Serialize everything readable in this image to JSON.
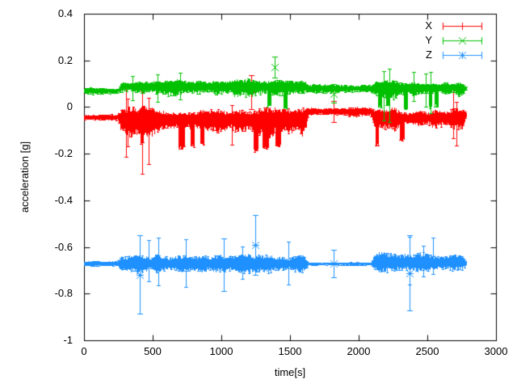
{
  "chart_data": {
    "type": "scatter",
    "style": "errorbars",
    "title": "",
    "xlabel": "time[s]",
    "ylabel": "acceleration [g]",
    "xlim": [
      0,
      3000
    ],
    "ylim": [
      -1,
      0.4
    ],
    "xticks": [
      "0",
      "500",
      "1000",
      "1500",
      "2000",
      "2500",
      "3000"
    ],
    "yticks": [
      "0.4",
      "0.2",
      "0",
      "-0.2",
      "-0.4",
      "-0.6",
      "-0.8",
      "-1"
    ],
    "grid": false,
    "legend_position": "top-right-inside",
    "t_end": 2782,
    "series": [
      {
        "name": "X",
        "color": "#ff0000",
        "marker": "plus",
        "segments": [
          {
            "t0": 0,
            "t1": 240,
            "mean": -0.044,
            "up": 0.014,
            "dn": 0.014
          },
          {
            "t0": 240,
            "t1": 1600,
            "mean": -0.05,
            "up": 0.06,
            "dn": 0.092
          },
          {
            "t0": 1600,
            "t1": 2080,
            "mean": -0.018,
            "up": 0.022,
            "dn": 0.026
          },
          {
            "t0": 2080,
            "t1": 2750,
            "mean": -0.045,
            "up": 0.055,
            "dn": 0.075
          },
          {
            "t0": 2750,
            "t1": 2782,
            "mean": -0.03,
            "up": 0.012,
            "dn": 0.012
          }
        ],
        "dips": [
          {
            "t0": 408,
            "t1": 432,
            "low": -0.155
          },
          {
            "t0": 688,
            "t1": 732,
            "low": -0.175
          },
          {
            "t0": 772,
            "t1": 802,
            "low": -0.165
          },
          {
            "t0": 843,
            "t1": 872,
            "low": -0.155
          },
          {
            "t0": 1232,
            "t1": 1268,
            "low": -0.185
          },
          {
            "t0": 1298,
            "t1": 1342,
            "low": -0.175
          },
          {
            "t0": 1393,
            "t1": 1432,
            "low": -0.165
          },
          {
            "t0": 2118,
            "t1": 2142,
            "low": -0.16
          },
          {
            "t0": 2298,
            "t1": 2332,
            "low": -0.14
          }
        ],
        "events": [
          {
            "t": 1215,
            "top": 0.135,
            "bot": -0.01
          },
          {
            "t": 1818,
            "top": 0.025,
            "bot": -0.065
          }
        ]
      },
      {
        "name": "Y",
        "color": "#00c000",
        "marker": "cross",
        "segments": [
          {
            "t0": 0,
            "t1": 240,
            "mean": 0.069,
            "up": 0.016,
            "dn": 0.016
          },
          {
            "t0": 240,
            "t1": 1600,
            "mean": 0.09,
            "up": 0.035,
            "dn": 0.055
          },
          {
            "t0": 1600,
            "t1": 2080,
            "mean": 0.08,
            "up": 0.022,
            "dn": 0.024
          },
          {
            "t0": 2080,
            "t1": 2750,
            "mean": 0.085,
            "up": 0.035,
            "dn": 0.062
          },
          {
            "t0": 2750,
            "t1": 2782,
            "mean": 0.08,
            "up": 0.012,
            "dn": 0.012
          }
        ],
        "dips": [
          {
            "t0": 1330,
            "t1": 1362,
            "low": 0.005
          },
          {
            "t0": 1450,
            "t1": 1482,
            "low": -0.005
          },
          {
            "t0": 2138,
            "t1": 2168,
            "low": 0.0
          },
          {
            "t0": 2198,
            "t1": 2228,
            "low": 0.005
          },
          {
            "t0": 2325,
            "t1": 2358,
            "low": -0.005
          },
          {
            "t0": 2508,
            "t1": 2532,
            "low": 0.0
          },
          {
            "t0": 2548,
            "t1": 2578,
            "low": 0.005
          }
        ],
        "events": [
          {
            "t": 1390,
            "top": 0.215,
            "bot": 0.125
          },
          {
            "t": 1818,
            "top": 0.1,
            "bot": 0.02
          }
        ]
      },
      {
        "name": "Z",
        "color": "#1e90ff",
        "marker": "asterisk",
        "segments": [
          {
            "t0": 0,
            "t1": 240,
            "mean": -0.671,
            "up": 0.014,
            "dn": 0.014
          },
          {
            "t0": 240,
            "t1": 1600,
            "mean": -0.67,
            "up": 0.048,
            "dn": 0.052
          },
          {
            "t0": 1600,
            "t1": 2080,
            "mean": -0.672,
            "up": 0.008,
            "dn": 0.008
          },
          {
            "t0": 2080,
            "t1": 2750,
            "mean": -0.665,
            "up": 0.048,
            "dn": 0.05
          },
          {
            "t0": 2750,
            "t1": 2782,
            "mean": -0.67,
            "up": 0.01,
            "dn": 0.01
          }
        ],
        "dips": [],
        "events": [
          {
            "t": 406,
            "top": -0.548,
            "bot": -0.885
          },
          {
            "t": 1018,
            "top": -0.565,
            "bot": -0.79
          },
          {
            "t": 1247,
            "top": -0.462,
            "bot": -0.72
          },
          {
            "t": 1818,
            "top": -0.612,
            "bot": -0.728
          },
          {
            "t": 2368,
            "top": -0.55,
            "bot": -0.872
          }
        ]
      }
    ]
  }
}
